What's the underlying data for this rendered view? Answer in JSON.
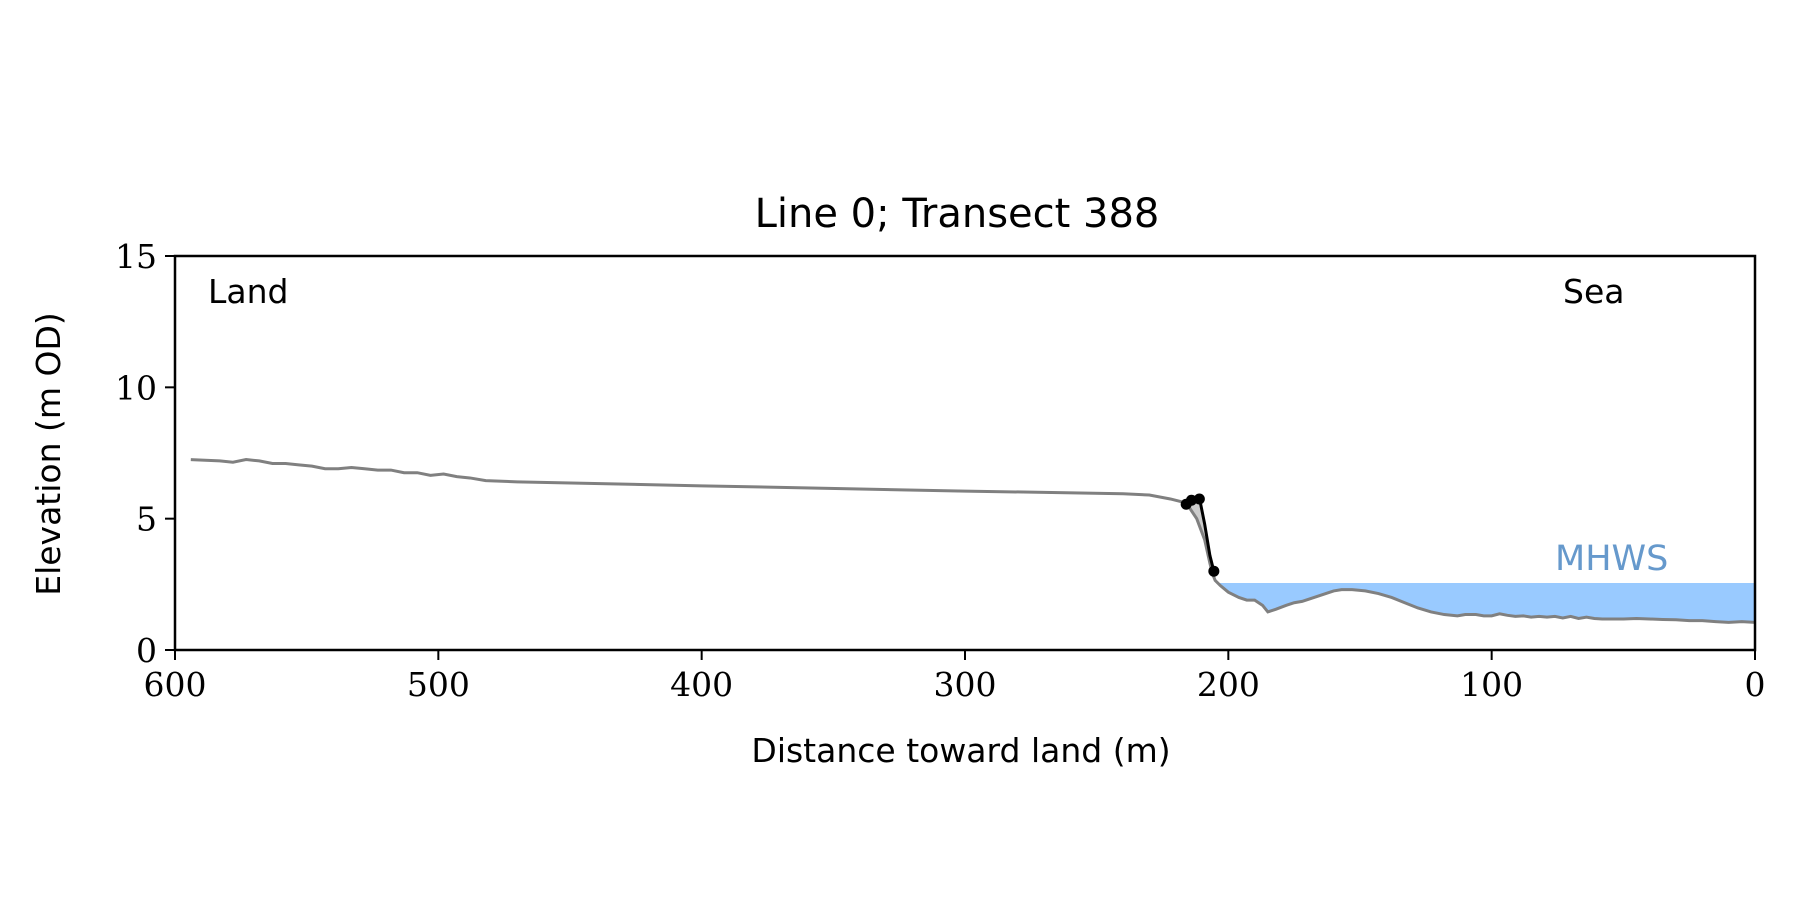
{
  "chart_data": {
    "type": "line",
    "title": "Line 0; Transect 388",
    "xlabel": "Distance toward land (m)",
    "ylabel": "Elevation (m OD)",
    "xlim": [
      600,
      0
    ],
    "ylim": [
      0,
      15
    ],
    "x_ticks": [
      600,
      500,
      400,
      300,
      200,
      100,
      0
    ],
    "y_ticks": [
      0,
      5,
      10,
      15
    ],
    "grid": false,
    "colors": {
      "profile": "#808080",
      "cliff": "#000000",
      "cliff_fill": "#cccccc",
      "water_fill": "#99caff",
      "mhws_label": "#6699cc"
    },
    "annotations": [
      {
        "text": "Land",
        "position": "top-left"
      },
      {
        "text": "Sea",
        "position": "top-right"
      },
      {
        "text": "MHWS",
        "position": "above-water-right"
      }
    ],
    "mhws": {
      "label": "MHWS",
      "elevation": 2.55
    },
    "series": [
      {
        "role": "profile",
        "x": [
          594,
          583,
          578,
          573,
          568,
          563,
          558,
          553,
          548,
          543,
          538,
          533,
          528,
          523,
          518,
          513,
          508,
          503,
          498,
          493,
          488,
          482,
          470,
          400,
          300,
          240,
          230,
          222,
          216,
          212,
          209,
          207,
          206,
          205,
          203,
          200,
          196,
          193,
          190,
          187,
          185,
          182,
          178,
          175,
          172,
          169,
          166,
          163,
          160,
          157,
          153,
          148,
          143,
          138,
          133,
          128,
          123,
          118,
          113,
          110,
          106,
          103,
          100,
          97,
          94,
          91,
          88,
          85,
          82,
          79,
          76,
          73,
          70,
          67,
          64,
          61,
          58,
          55,
          50,
          45,
          40,
          35,
          30,
          25,
          20,
          15,
          10,
          5,
          0
        ],
        "y": [
          7.25,
          7.2,
          7.15,
          7.25,
          7.2,
          7.1,
          7.1,
          7.05,
          7.0,
          6.9,
          6.9,
          6.95,
          6.9,
          6.85,
          6.85,
          6.75,
          6.75,
          6.65,
          6.7,
          6.6,
          6.55,
          6.45,
          6.4,
          6.25,
          6.05,
          5.95,
          5.9,
          5.75,
          5.6,
          5.0,
          4.2,
          3.3,
          2.9,
          2.65,
          2.45,
          2.2,
          2.0,
          1.9,
          1.9,
          1.7,
          1.45,
          1.55,
          1.7,
          1.8,
          1.85,
          1.95,
          2.05,
          2.15,
          2.25,
          2.3,
          2.3,
          2.25,
          2.15,
          2.0,
          1.8,
          1.6,
          1.45,
          1.35,
          1.3,
          1.35,
          1.35,
          1.3,
          1.3,
          1.38,
          1.32,
          1.28,
          1.3,
          1.25,
          1.28,
          1.25,
          1.28,
          1.22,
          1.28,
          1.2,
          1.25,
          1.2,
          1.18,
          1.18,
          1.18,
          1.2,
          1.18,
          1.16,
          1.15,
          1.12,
          1.12,
          1.08,
          1.05,
          1.08,
          1.05
        ]
      },
      {
        "role": "cliff",
        "x": [
          216,
          215,
          213,
          211,
          209,
          207,
          205.5
        ],
        "y": [
          5.6,
          5.75,
          5.8,
          5.8,
          4.8,
          3.6,
          3.0
        ],
        "markers_x": [
          216,
          214,
          211,
          205.5
        ],
        "markers_y": [
          5.55,
          5.7,
          5.75,
          3.0
        ]
      }
    ]
  }
}
